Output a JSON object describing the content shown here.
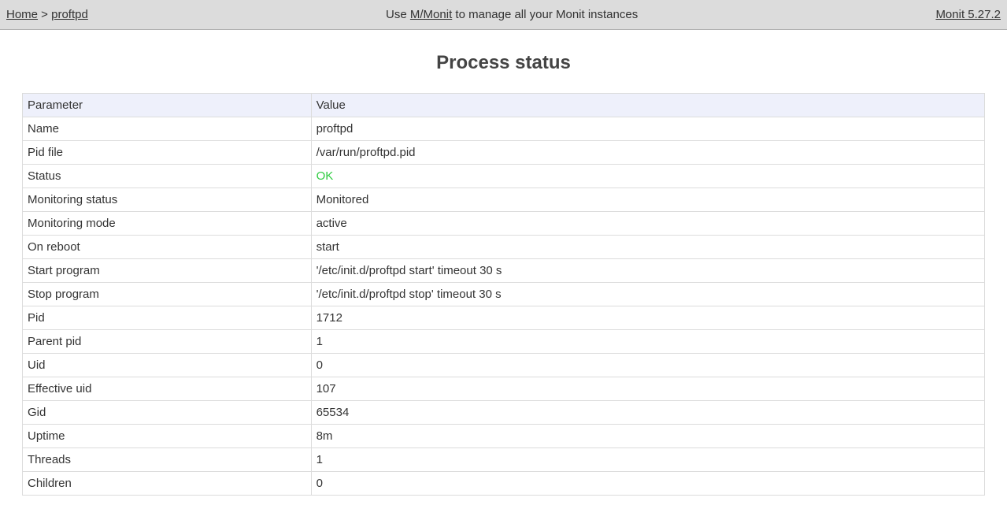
{
  "topbar": {
    "home_label": "Home",
    "separator": " > ",
    "crumb_label": "proftpd",
    "promo_prefix": "Use ",
    "promo_link": "M/Monit",
    "promo_suffix": " to manage all your Monit instances",
    "version_label": "Monit 5.27.2"
  },
  "title": "Process status",
  "table": {
    "header_param": "Parameter",
    "header_value": "Value",
    "status_ok_color": "#2ecc40",
    "rows": [
      {
        "param": "Name",
        "value": "proftpd"
      },
      {
        "param": "Pid file",
        "value": "/var/run/proftpd.pid"
      },
      {
        "param": "Status",
        "value": "OK",
        "is_status": true
      },
      {
        "param": "Monitoring status",
        "value": "Monitored"
      },
      {
        "param": "Monitoring mode",
        "value": "active"
      },
      {
        "param": "On reboot",
        "value": "start"
      },
      {
        "param": "Start program",
        "value": "'/etc/init.d/proftpd start' timeout 30 s"
      },
      {
        "param": "Stop program",
        "value": "'/etc/init.d/proftpd stop' timeout 30 s"
      },
      {
        "param": "Pid",
        "value": "1712"
      },
      {
        "param": "Parent pid",
        "value": "1"
      },
      {
        "param": "Uid",
        "value": "0"
      },
      {
        "param": "Effective uid",
        "value": "107"
      },
      {
        "param": "Gid",
        "value": "65534"
      },
      {
        "param": "Uptime",
        "value": "8m"
      },
      {
        "param": "Threads",
        "value": "1"
      },
      {
        "param": "Children",
        "value": "0"
      }
    ]
  }
}
